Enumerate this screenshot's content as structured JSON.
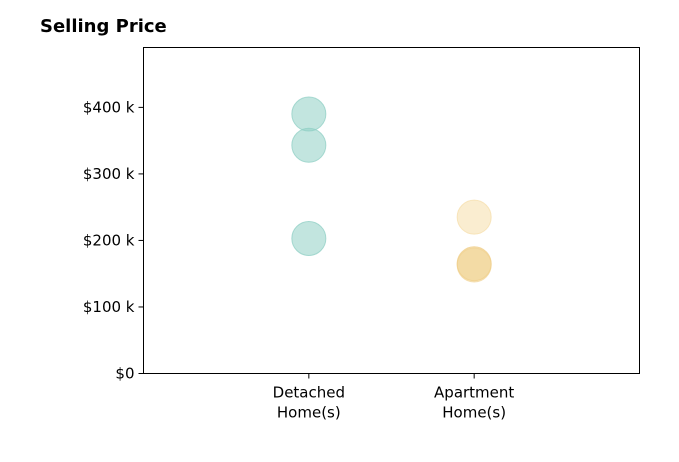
{
  "chart_data": {
    "type": "scatter",
    "title": "Selling Price",
    "xlabel": "",
    "ylabel": "",
    "categories": [
      [
        "Detached",
        "Home(s)"
      ],
      [
        "Apartment",
        "Home(s)"
      ]
    ],
    "y_ticks": [
      {
        "value": 0,
        "label": "$0"
      },
      {
        "value": 100,
        "label": "$100 k"
      },
      {
        "value": 200,
        "label": "$200 k"
      },
      {
        "value": 300,
        "label": "$300 k"
      },
      {
        "value": 400,
        "label": "$400 k"
      }
    ],
    "ylim": [
      0,
      490
    ],
    "xlim": [
      -1,
      2
    ],
    "grid": false,
    "points": [
      {
        "category_index": 0,
        "value": 390,
        "color": "#8fcfc4",
        "opacity": 0.55
      },
      {
        "category_index": 0,
        "value": 343,
        "color": "#8fcfc4",
        "opacity": 0.55
      },
      {
        "category_index": 0,
        "value": 203,
        "color": "#8fcfc4",
        "opacity": 0.55
      },
      {
        "category_index": 1,
        "value": 235,
        "color": "#f5deaa",
        "opacity": 0.55
      },
      {
        "category_index": 1,
        "value": 165,
        "color": "#f0d08c",
        "opacity": 0.6
      },
      {
        "category_index": 1,
        "value": 163,
        "color": "#f0d08c",
        "opacity": 0.45
      }
    ]
  }
}
